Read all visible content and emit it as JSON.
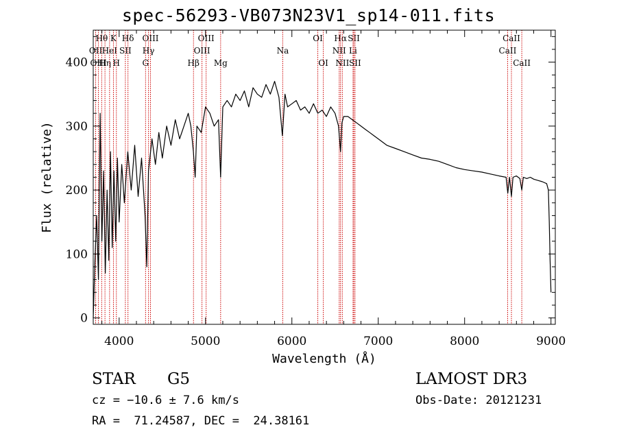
{
  "title": "spec-56293-VB073N23V1_sp14-011.fits",
  "info": {
    "class_label": "STAR",
    "subclass": "G5",
    "survey": "LAMOST DR3",
    "redshift_text": "cz = −10.6 ± 7.6 km/s",
    "obs_date_text": "Obs-Date: 20121231",
    "coords_text": "RA =  71.24587, DEC =  24.38161"
  },
  "chart_data": {
    "type": "line",
    "title": "spec-56293-VB073N23V1_sp14-011.fits",
    "xlabel": "Wavelength (Å)",
    "ylabel": "Flux (relative)",
    "xlim": [
      3700,
      9050
    ],
    "ylim": [
      -10,
      450
    ],
    "xticks": [
      4000,
      5000,
      6000,
      7000,
      8000,
      9000
    ],
    "yticks": [
      0,
      100,
      200,
      300,
      400
    ],
    "grid": false,
    "line_color": "#000000",
    "marker_color": "#cc0000",
    "series": [
      {
        "name": "flux",
        "x": [
          3700,
          3720,
          3740,
          3760,
          3780,
          3800,
          3820,
          3840,
          3860,
          3880,
          3900,
          3920,
          3940,
          3960,
          3980,
          4000,
          4030,
          4060,
          4100,
          4140,
          4180,
          4220,
          4260,
          4300,
          4320,
          4340,
          4380,
          4420,
          4460,
          4500,
          4550,
          4600,
          4650,
          4700,
          4750,
          4800,
          4830,
          4860,
          4880,
          4900,
          4950,
          5000,
          5050,
          5100,
          5150,
          5175,
          5200,
          5250,
          5300,
          5350,
          5400,
          5450,
          5500,
          5550,
          5600,
          5650,
          5700,
          5750,
          5800,
          5850,
          5890,
          5920,
          5950,
          6000,
          6050,
          6100,
          6150,
          6200,
          6250,
          6300,
          6350,
          6400,
          6450,
          6500,
          6540,
          6563,
          6580,
          6600,
          6650,
          6700,
          6750,
          6800,
          6850,
          6900,
          6950,
          7000,
          7100,
          7200,
          7300,
          7400,
          7500,
          7600,
          7700,
          7800,
          7900,
          8000,
          8100,
          8200,
          8300,
          8400,
          8480,
          8500,
          8520,
          8542,
          8560,
          8600,
          8640,
          8662,
          8680,
          8720,
          8760,
          8800,
          8850,
          8900,
          8950,
          8970,
          8980,
          8990,
          9000
        ],
        "y": [
          0,
          90,
          160,
          60,
          320,
          120,
          230,
          70,
          200,
          90,
          260,
          110,
          230,
          120,
          250,
          150,
          240,
          180,
          260,
          200,
          270,
          190,
          250,
          160,
          80,
          230,
          280,
          240,
          290,
          250,
          300,
          270,
          310,
          280,
          300,
          320,
          300,
          260,
          220,
          300,
          290,
          330,
          320,
          300,
          310,
          220,
          330,
          340,
          330,
          350,
          340,
          355,
          330,
          360,
          350,
          345,
          365,
          350,
          370,
          345,
          285,
          350,
          330,
          335,
          340,
          325,
          330,
          320,
          335,
          320,
          325,
          315,
          330,
          320,
          300,
          260,
          305,
          315,
          315,
          310,
          305,
          300,
          295,
          290,
          285,
          280,
          270,
          265,
          260,
          255,
          250,
          248,
          245,
          240,
          235,
          232,
          230,
          228,
          225,
          222,
          220,
          195,
          220,
          190,
          220,
          222,
          218,
          200,
          220,
          218,
          220,
          217,
          215,
          213,
          210,
          200,
          150,
          90,
          40
        ]
      }
    ],
    "lines": [
      {
        "name": "Hθ",
        "wavelength": 3798,
        "row": 0
      },
      {
        "name": "Hη",
        "wavelength": 3836,
        "row": 2
      },
      {
        "name": "OII",
        "wavelength": 3728,
        "row": 1
      },
      {
        "name": "OIII",
        "wavelength": 3760,
        "row": 2
      },
      {
        "name": "HeI",
        "wavelength": 3889,
        "row": 1
      },
      {
        "name": "K",
        "wavelength": 3934,
        "row": 0
      },
      {
        "name": "H",
        "wavelength": 3968,
        "row": 2
      },
      {
        "name": "SII",
        "wavelength": 4072,
        "row": 1
      },
      {
        "name": "Hδ",
        "wavelength": 4102,
        "row": 0
      },
      {
        "name": "OIII",
        "wavelength": 4363,
        "row": 0
      },
      {
        "name": "Hγ",
        "wavelength": 4340,
        "row": 1
      },
      {
        "name": "G",
        "wavelength": 4306,
        "row": 2
      },
      {
        "name": "Hβ",
        "wavelength": 4861,
        "row": 2
      },
      {
        "name": "OIII",
        "wavelength": 5007,
        "row": 0
      },
      {
        "name": "OIII",
        "wavelength": 4959,
        "row": 1
      },
      {
        "name": "Mg",
        "wavelength": 5175,
        "row": 2
      },
      {
        "name": "Na",
        "wavelength": 5894,
        "row": 1
      },
      {
        "name": "OI",
        "wavelength": 6300,
        "row": 0
      },
      {
        "name": "OI",
        "wavelength": 6364,
        "row": 2
      },
      {
        "name": "Hα",
        "wavelength": 6563,
        "row": 0
      },
      {
        "name": "NII",
        "wavelength": 6548,
        "row": 1
      },
      {
        "name": "NII",
        "wavelength": 6584,
        "row": 2
      },
      {
        "name": "SII",
        "wavelength": 6717,
        "row": 0
      },
      {
        "name": "Li",
        "wavelength": 6708,
        "row": 1
      },
      {
        "name": "SII",
        "wavelength": 6731,
        "row": 2
      },
      {
        "name": "CaII",
        "wavelength": 8542,
        "row": 0
      },
      {
        "name": "CaII",
        "wavelength": 8498,
        "row": 1
      },
      {
        "name": "CaII",
        "wavelength": 8662,
        "row": 2
      }
    ]
  }
}
